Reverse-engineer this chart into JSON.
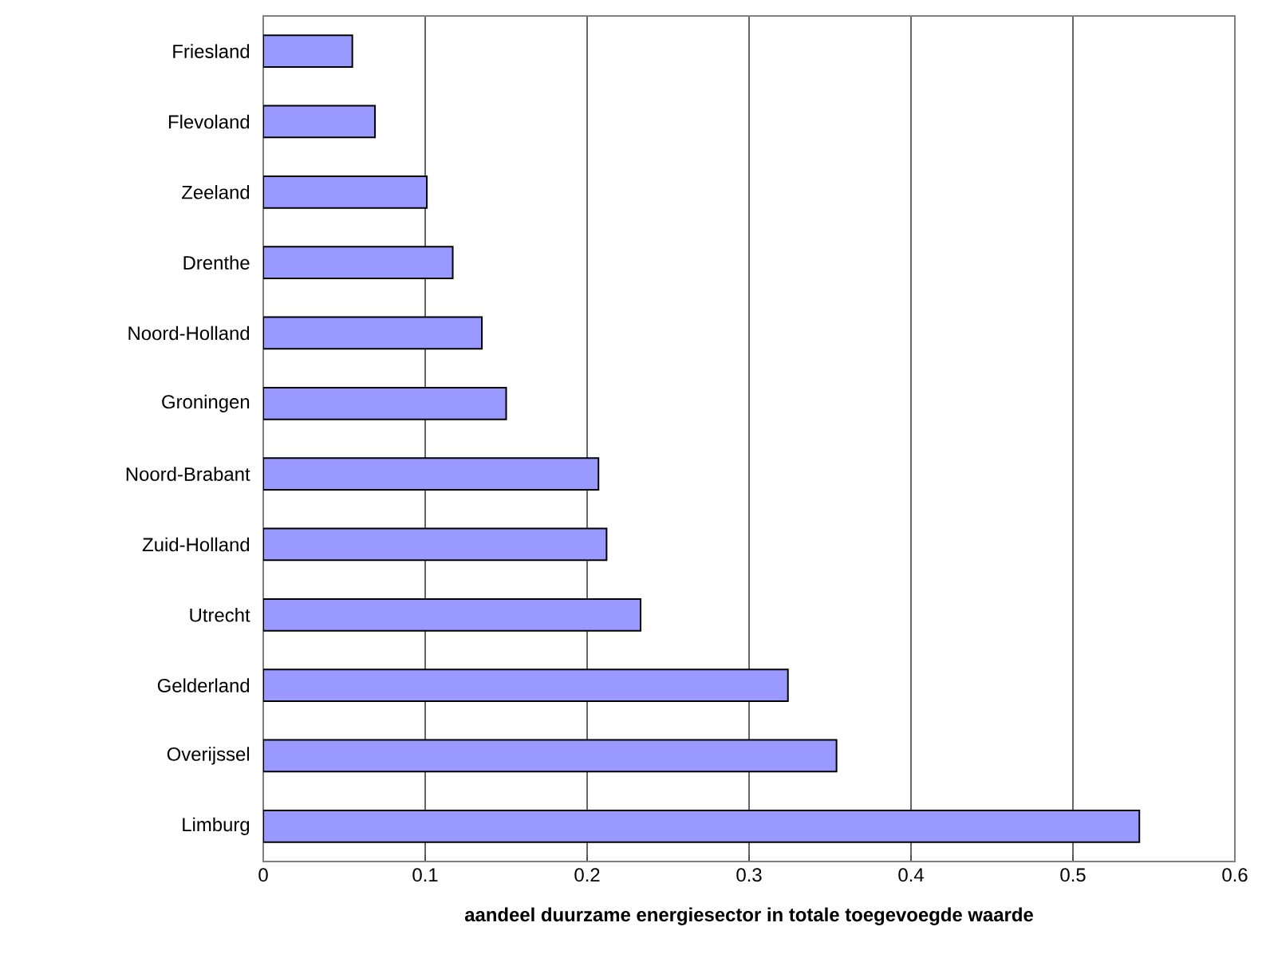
{
  "chart_data": {
    "type": "bar",
    "orientation": "horizontal",
    "xlabel": "aandeel duurzame energiesector in totale toegevoegde waarde",
    "categories": [
      "Friesland",
      "Flevoland",
      "Zeeland",
      "Drenthe",
      "Noord-Holland",
      "Groningen",
      "Noord-Brabant",
      "Zuid-Holland",
      "Utrecht",
      "Gelderland",
      "Overijssel",
      "Limburg"
    ],
    "values": [
      0.055,
      0.069,
      0.101,
      0.117,
      0.135,
      0.15,
      0.207,
      0.212,
      0.233,
      0.324,
      0.354,
      0.541
    ],
    "color": "#9999ff",
    "xlim": [
      0,
      0.6
    ],
    "xticks": [
      0,
      0.1,
      0.2,
      0.3,
      0.4,
      0.5,
      0.6
    ],
    "grid": "x"
  }
}
